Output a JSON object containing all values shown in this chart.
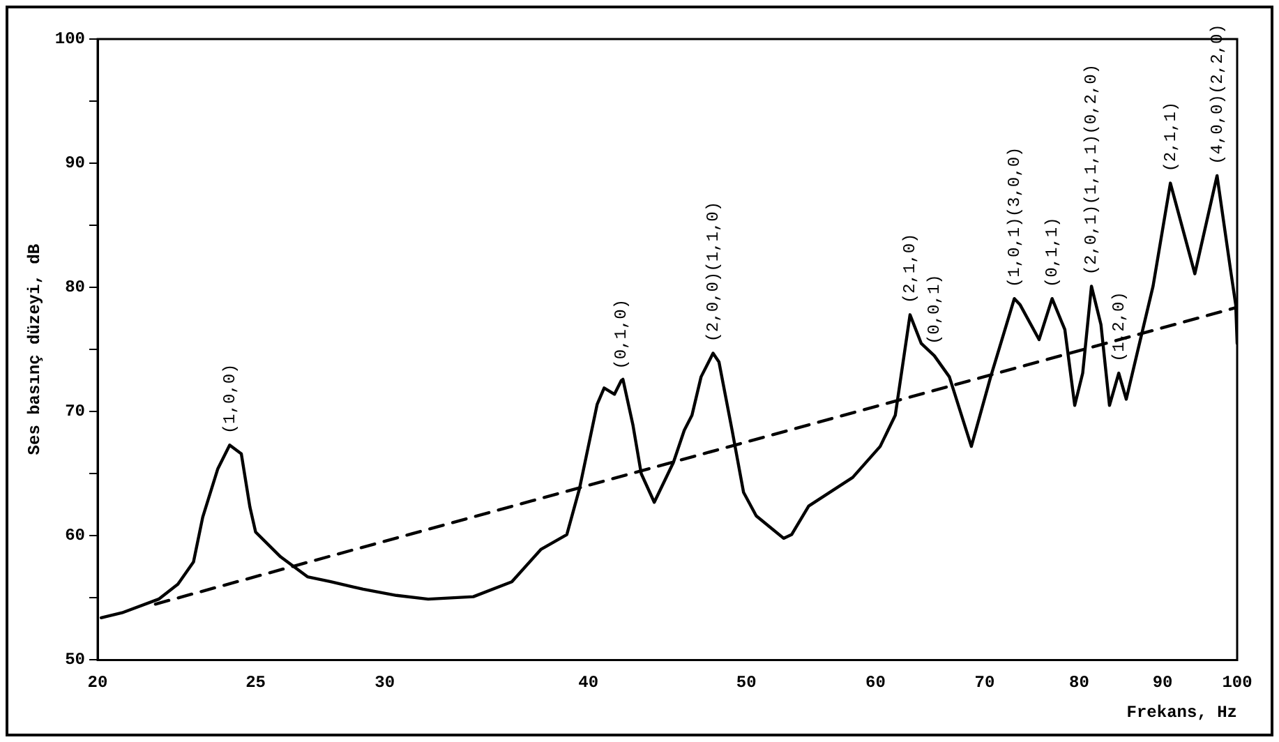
{
  "chart_data": {
    "type": "line",
    "xlabel": "Frekans, Hz",
    "ylabel": "Ses basınç düzeyi, dB",
    "log": "x",
    "xlim": [
      20,
      100
    ],
    "ylim": [
      50,
      100
    ],
    "xticks": [
      20,
      25,
      30,
      40,
      50,
      60,
      70,
      80,
      90,
      100
    ],
    "yticks": [
      50,
      {
        "value": 55,
        "label": null
      },
      60,
      {
        "value": 65,
        "label": null
      },
      70,
      {
        "value": 75,
        "label": null
      },
      80,
      {
        "value": 85,
        "label": null
      },
      90,
      {
        "value": 95,
        "label": null
      },
      100
    ],
    "grid": false,
    "legend": false,
    "marker": "none",
    "series": [
      {
        "color": "#000000",
        "line_style": "solid",
        "x": [
          20.1,
          20.7,
          21.8,
          22.4,
          22.9,
          23.2,
          23.7,
          24.1,
          24.5,
          24.8,
          25.0,
          25.9,
          26.9,
          27.8,
          29.1,
          30.5,
          31.9,
          34.0,
          35.9,
          37.4,
          38.8,
          39.5,
          40.5,
          40.9,
          41.5,
          41.9,
          42.0,
          42.6,
          43.1,
          43.9,
          45.1,
          45.8,
          46.3,
          46.9,
          47.7,
          48.1,
          49.0,
          49.8,
          50.7,
          52.7,
          53.3,
          54.6,
          58.1,
          60.4,
          61.7,
          63.0,
          64.0,
          65.2,
          66.6,
          68.7,
          70.6,
          73.0,
          73.6,
          75.6,
          77.0,
          78.4,
          79.5,
          80.4,
          81.4,
          82.5,
          83.5,
          84.6,
          85.5,
          88.8,
          91.0,
          94.2,
          97.2,
          99.1,
          99.8,
          100
        ],
        "values": [
          53.4,
          53.8,
          54.9,
          56.1,
          57.9,
          61.5,
          65.4,
          67.3,
          66.6,
          62.3,
          60.3,
          58.3,
          56.7,
          56.3,
          55.7,
          55.2,
          54.9,
          55.1,
          56.3,
          58.9,
          60.1,
          63.8,
          70.6,
          71.9,
          71.4,
          72.5,
          72.6,
          68.9,
          65.0,
          62.7,
          65.9,
          68.5,
          69.7,
          72.8,
          74.7,
          74.0,
          68.5,
          63.5,
          61.6,
          59.8,
          60.1,
          62.4,
          64.7,
          67.2,
          69.7,
          77.8,
          75.5,
          74.5,
          72.8,
          67.2,
          72.8,
          79.1,
          78.6,
          75.8,
          79.1,
          76.6,
          70.5,
          73.1,
          80.1,
          77.0,
          70.5,
          73.1,
          71.0,
          80.1,
          88.4,
          81.1,
          89.0,
          81.3,
          78.6,
          75.5
        ]
      },
      {
        "type": "line",
        "color": "#000000",
        "line_style": "dashed",
        "x": [
          21.7,
          100
        ],
        "values": [
          54.5,
          78.4
        ]
      }
    ],
    "annotations": [
      {
        "text": "(1,0,0)",
        "x": 24.1,
        "y": 67.3
      },
      {
        "text": "(0,1,0)",
        "x": 41.9,
        "y": 72.5
      },
      {
        "text": "(2,0,0)(1,1,0)",
        "x": 47.7,
        "y": 74.7
      },
      {
        "text": "(2,1,0)",
        "x": 63.0,
        "y": 77.8
      },
      {
        "text": "(0,0,1)",
        "x": 65.2,
        "y": 74.5
      },
      {
        "text": "(1,0,1)(3,0,0)",
        "x": 73.0,
        "y": 79.1
      },
      {
        "text": "(0,1,1)",
        "x": 77.0,
        "y": 79.1
      },
      {
        "text": "(2,0,1)(1,1,1)(0,2,0)",
        "x": 81.4,
        "y": 80.1
      },
      {
        "text": "(1,2,0)",
        "x": 84.6,
        "y": 73.1
      },
      {
        "text": "(2,1,1)",
        "x": 91.0,
        "y": 88.4
      },
      {
        "text": "(4,0,0)(2,2,0)",
        "x": 97.2,
        "y": 89.0
      }
    ]
  }
}
